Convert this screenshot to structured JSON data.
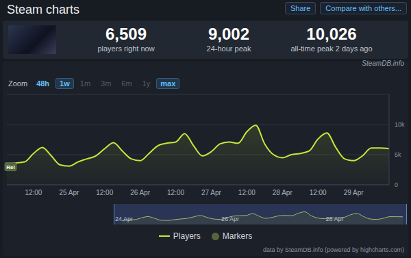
{
  "header": {
    "title": "Steam charts",
    "buttons": [
      "Share",
      "Compare with others..."
    ],
    "stats": [
      {
        "value": "6,509",
        "label": "players right now"
      },
      {
        "value": "9,002",
        "label": "24-hour peak"
      },
      {
        "value": "10,026",
        "label": "all-time peak 2 days ago"
      }
    ],
    "credit": "SteamDB.info"
  },
  "zoom": {
    "label": "Zoom",
    "options": [
      "48h",
      "1w",
      "1m",
      "3m",
      "6m",
      "1y",
      "max"
    ],
    "enabled": [
      "48h",
      "1w",
      "max"
    ],
    "selected": [
      "1w",
      "max"
    ]
  },
  "chart_data": {
    "type": "area",
    "categories": [
      null,
      null,
      null,
      "12:00",
      null,
      null,
      null,
      "25 Apr",
      null,
      null,
      null,
      "12:00",
      null,
      null,
      null,
      "26 Apr",
      null,
      null,
      null,
      "12:00",
      null,
      null,
      null,
      "27 Apr",
      null,
      null,
      null,
      "12:00",
      null,
      null,
      null,
      "28 Apr",
      null,
      null,
      null,
      "12:00",
      null,
      null,
      null,
      "29 Apr",
      null,
      null,
      null,
      null
    ],
    "series": [
      {
        "name": "Players",
        "color": "#c8e63c",
        "values": [
          3000,
          3600,
          3800,
          5200,
          6200,
          4800,
          3300,
          3100,
          3800,
          4300,
          4800,
          6000,
          7000,
          5600,
          4300,
          4000,
          5200,
          6500,
          6900,
          7100,
          8500,
          6500,
          4800,
          5500,
          6800,
          7100,
          6900,
          8800,
          9900,
          6800,
          5000,
          4500,
          5000,
          5200,
          5600,
          7600,
          8600,
          6200,
          4300,
          4000,
          4800,
          6100,
          6100,
          6000
        ]
      },
      {
        "name": "Markers",
        "type": "scatter",
        "color": "#56663a",
        "values": [
          3000,
          null,
          null,
          null,
          null,
          null,
          null,
          null,
          null,
          null,
          null,
          null,
          null,
          null,
          null,
          null,
          null,
          null,
          null,
          null,
          null,
          null,
          null,
          null,
          null,
          null,
          null,
          null,
          null,
          null,
          null,
          null,
          null,
          null,
          null,
          null,
          null,
          null,
          null,
          null,
          null,
          null,
          null,
          null
        ],
        "labels": [
          "Rel",
          null,
          null,
          null,
          null,
          null,
          null,
          null,
          null,
          null,
          null,
          null,
          null,
          null,
          null,
          null,
          null,
          null,
          null,
          null,
          null,
          null,
          null,
          null,
          null,
          null,
          null,
          null,
          null,
          null,
          null,
          null,
          null,
          null,
          null,
          null,
          null,
          null,
          null,
          null,
          null,
          null,
          null,
          null
        ]
      }
    ],
    "ylim": [
      0,
      15000
    ],
    "yticks": [
      0,
      {
        "value": 5000,
        "label": "5k"
      },
      {
        "value": 10000,
        "label": "10k"
      }
    ],
    "grid": true,
    "legend": "bottom"
  },
  "navigator": {
    "labels": [
      "24 Apr",
      "26 Apr",
      "28 Apr"
    ],
    "label_positions": [
      0,
      15,
      31
    ]
  },
  "footer": "data by SteamDB.info (powered by highcharts.com)"
}
